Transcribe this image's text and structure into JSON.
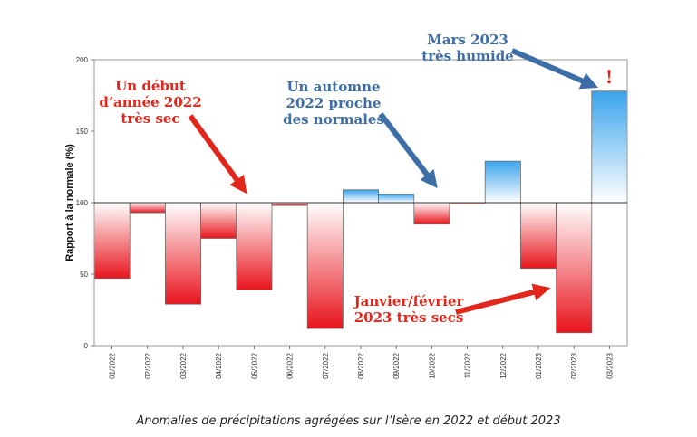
{
  "caption": "Anomalies de précipitations agrégées sur l’Isère en 2022 et début 2023",
  "chart_data": {
    "type": "bar",
    "ylabel": "Rapport à la normale (%)",
    "ylim": [
      0,
      200
    ],
    "yticks": [
      0,
      50,
      100,
      150,
      200
    ],
    "baseline": 100,
    "categories": [
      "01/2022",
      "02/2022",
      "03/2022",
      "04/2022",
      "05/2022",
      "06/2022",
      "07/2022",
      "08/2022",
      "09/2022",
      "10/2022",
      "11/2022",
      "12/2022",
      "01/2023",
      "02/2023",
      "03/2023"
    ],
    "values": [
      47,
      93,
      29,
      75,
      39,
      98,
      12,
      109,
      106,
      85,
      99,
      129,
      54,
      9,
      178
    ],
    "colors": {
      "deficit": "#e8141c",
      "surplus": "#3aa4ec"
    },
    "annotations": [
      {
        "lines": [
          "Un début",
          "d’année 2022",
          "très sec"
        ],
        "color": "#e3261b"
      },
      {
        "lines": [
          "Un automne",
          "2022 proche",
          "des normales"
        ],
        "color": "#3d6ea8"
      },
      {
        "lines": [
          "Mars 2023",
          "très humide"
        ],
        "color": "#3d6ea8"
      },
      {
        "lines": [
          "Janvier/février",
          "2023 très secs"
        ],
        "color": "#e3261b"
      },
      {
        "lines": [
          "!"
        ],
        "color": "#e3261b"
      }
    ]
  }
}
